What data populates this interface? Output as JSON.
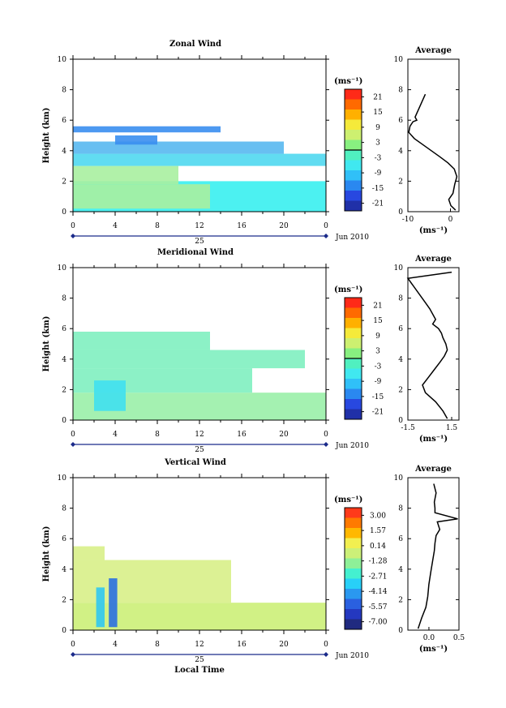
{
  "panels": [
    {
      "title": "Zonal Wind",
      "ylabel": "Height (km)",
      "xticks": [
        "0",
        "4",
        "8",
        "12",
        "16",
        "20",
        "0"
      ],
      "yticks": [
        "0",
        "2",
        "4",
        "6",
        "8",
        "10"
      ],
      "date_day": "25",
      "date_label": "Jun 2010",
      "cbar_unit": "(ms⁻¹)",
      "cbar_ticks": [
        "21",
        "15",
        "9",
        "3",
        "-3",
        "-9",
        "-15",
        "-21"
      ],
      "avg_title": "Average",
      "avg_xticks": [
        "-10",
        "0"
      ],
      "avg_yticks": [
        "0",
        "2",
        "4",
        "6",
        "8",
        "10"
      ],
      "avg_unit": "(ms⁻¹)"
    },
    {
      "title": "Meridional Wind",
      "ylabel": "Height (km)",
      "xticks": [
        "0",
        "4",
        "8",
        "12",
        "16",
        "20",
        "0"
      ],
      "yticks": [
        "0",
        "2",
        "4",
        "6",
        "8",
        "10"
      ],
      "date_day": "25",
      "date_label": "Jun 2010",
      "cbar_unit": "(ms⁻¹)",
      "cbar_ticks": [
        "21",
        "15",
        "9",
        "3",
        "-3",
        "-9",
        "-15",
        "-21"
      ],
      "avg_title": "Average",
      "avg_xticks": [
        "-1.5",
        "1.5"
      ],
      "avg_yticks": [
        "0",
        "2",
        "4",
        "6",
        "8",
        "10"
      ],
      "avg_unit": "(ms⁻¹)"
    },
    {
      "title": "Vertical Wind",
      "ylabel": "Height (km)",
      "xticks": [
        "0",
        "4",
        "8",
        "12",
        "16",
        "20",
        "0"
      ],
      "yticks": [
        "0",
        "2",
        "4",
        "6",
        "8",
        "10"
      ],
      "date_day": "25",
      "date_label": "Jun 2010",
      "cbar_unit": "(ms⁻¹)",
      "cbar_ticks": [
        "3.00",
        "1.57",
        "0.14",
        "-1.28",
        "-2.71",
        "-4.14",
        "-5.57",
        "-7.00"
      ],
      "avg_title": "Average",
      "avg_xticks": [
        "0.0",
        "0.5"
      ],
      "avg_yticks": [
        "0",
        "2",
        "4",
        "6",
        "8",
        "10"
      ],
      "avg_unit": "(ms⁻¹)",
      "xlabel": "Local Time"
    }
  ],
  "colors": {
    "cbar": [
      "#ff2a18",
      "#ff6a00",
      "#ffb000",
      "#f5ea3a",
      "#cdf070",
      "#88f080",
      "#50f0c0",
      "#40e8f0",
      "#30c0f8",
      "#2a88f0",
      "#2848e0",
      "#2030a8"
    ],
    "cbar_vertical": [
      "#ff3a1a",
      "#ff7a00",
      "#ffb800",
      "#f2ef50",
      "#ccf078",
      "#8ef098",
      "#44f0d0",
      "#28d0f8",
      "#2a98f0",
      "#2a60e0",
      "#2438c0",
      "#202a80"
    ]
  },
  "chart_data": [
    {
      "type": "heatmap",
      "title": "Zonal Wind",
      "ylabel": "Height (km)",
      "xlim": [
        0,
        24
      ],
      "ylim": [
        0,
        10
      ],
      "colorbar_range": [
        -21,
        21
      ],
      "layers": [
        {
          "x": [
            0,
            24
          ],
          "y": [
            0,
            2.0
          ],
          "color": "#38f0f0"
        },
        {
          "x": [
            0,
            13
          ],
          "y": [
            0.2,
            1.8
          ],
          "color": "#a8f0a0"
        },
        {
          "x": [
            0,
            10
          ],
          "y": [
            1.8,
            3.0
          ],
          "color": "#a8f0a0"
        },
        {
          "x": [
            0,
            24
          ],
          "y": [
            3.0,
            3.8
          ],
          "color": "#50d8f0"
        },
        {
          "x": [
            0,
            20
          ],
          "y": [
            3.8,
            4.6
          ],
          "color": "#58b8f0"
        },
        {
          "x": [
            4,
            8
          ],
          "y": [
            4.4,
            5.0
          ],
          "color": "#3a8ef0"
        },
        {
          "x": [
            0,
            14
          ],
          "y": [
            5.2,
            5.6
          ],
          "color": "#3a8ef0"
        }
      ],
      "average": {
        "height": [
          0.1,
          0.4,
          0.8,
          1.2,
          1.8,
          2.3,
          2.8,
          3.2,
          3.6,
          4.0,
          4.4,
          4.8,
          5.2,
          5.6,
          5.9,
          6.0,
          6.2,
          7.2,
          7.7
        ],
        "value": [
          1.2,
          0.1,
          -0.4,
          0.6,
          1.0,
          1.5,
          0.9,
          -0.6,
          -2.5,
          -4.5,
          -6.5,
          -8.5,
          -9.8,
          -9.5,
          -8.8,
          -7.9,
          -8.3,
          -6.7,
          -5.9
        ]
      }
    },
    {
      "type": "heatmap",
      "title": "Meridional Wind",
      "ylabel": "Height (km)",
      "xlim": [
        0,
        24
      ],
      "ylim": [
        0,
        10
      ],
      "colorbar_range": [
        -21,
        21
      ],
      "layers": [
        {
          "x": [
            0,
            24
          ],
          "y": [
            0,
            1.8
          ],
          "color": "#9af0a8"
        },
        {
          "x": [
            0,
            17
          ],
          "y": [
            1.8,
            3.4
          ],
          "color": "#80f0c0"
        },
        {
          "x": [
            2,
            5
          ],
          "y": [
            0.6,
            2.6
          ],
          "color": "#40e0f0"
        },
        {
          "x": [
            0,
            22
          ],
          "y": [
            3.4,
            4.6
          ],
          "color": "#80f0c0"
        },
        {
          "x": [
            0,
            13
          ],
          "y": [
            4.6,
            5.8
          ],
          "color": "#80f0c0"
        }
      ],
      "average": {
        "height": [
          0.1,
          0.6,
          1.2,
          1.8,
          2.3,
          2.8,
          3.3,
          3.8,
          4.2,
          4.6,
          5.0,
          5.4,
          5.7,
          6.0,
          6.3,
          6.6,
          7.3,
          7.7,
          9.3,
          9.7
        ],
        "value": [
          1.2,
          0.9,
          0.4,
          -0.3,
          -0.5,
          -0.1,
          0.3,
          0.7,
          1.0,
          1.2,
          1.1,
          0.9,
          0.8,
          0.6,
          0.2,
          0.4,
          0.0,
          -0.3,
          -1.5,
          1.5
        ]
      }
    },
    {
      "type": "heatmap",
      "title": "Vertical Wind",
      "ylabel": "Height (km)",
      "xlabel": "Local Time",
      "xlim": [
        0,
        24
      ],
      "ylim": [
        0,
        10
      ],
      "colorbar_range": [
        -7.0,
        3.0
      ],
      "layers": [
        {
          "x": [
            0,
            24
          ],
          "y": [
            0,
            1.8
          ],
          "color": "#ccf078"
        },
        {
          "x": [
            0,
            15
          ],
          "y": [
            1.8,
            4.6
          ],
          "color": "#d8f088"
        },
        {
          "x": [
            0,
            3
          ],
          "y": [
            4.6,
            5.5
          ],
          "color": "#d8f088"
        },
        {
          "x": [
            2.2,
            3.0
          ],
          "y": [
            0.2,
            2.8
          ],
          "color": "#30c8f0"
        },
        {
          "x": [
            3.4,
            4.2
          ],
          "y": [
            0.2,
            3.4
          ],
          "color": "#2a70e0"
        }
      ],
      "average": {
        "height": [
          0.1,
          0.8,
          1.5,
          2.2,
          3.0,
          3.8,
          4.5,
          5.2,
          5.7,
          6.2,
          6.6,
          7.1,
          7.3,
          7.7,
          8.0,
          8.4,
          9.0,
          9.6
        ],
        "value": [
          -0.18,
          -0.12,
          -0.05,
          -0.02,
          0.0,
          0.03,
          0.06,
          0.09,
          0.1,
          0.12,
          0.18,
          0.14,
          0.48,
          0.1,
          0.1,
          0.09,
          0.12,
          0.08
        ]
      }
    }
  ]
}
